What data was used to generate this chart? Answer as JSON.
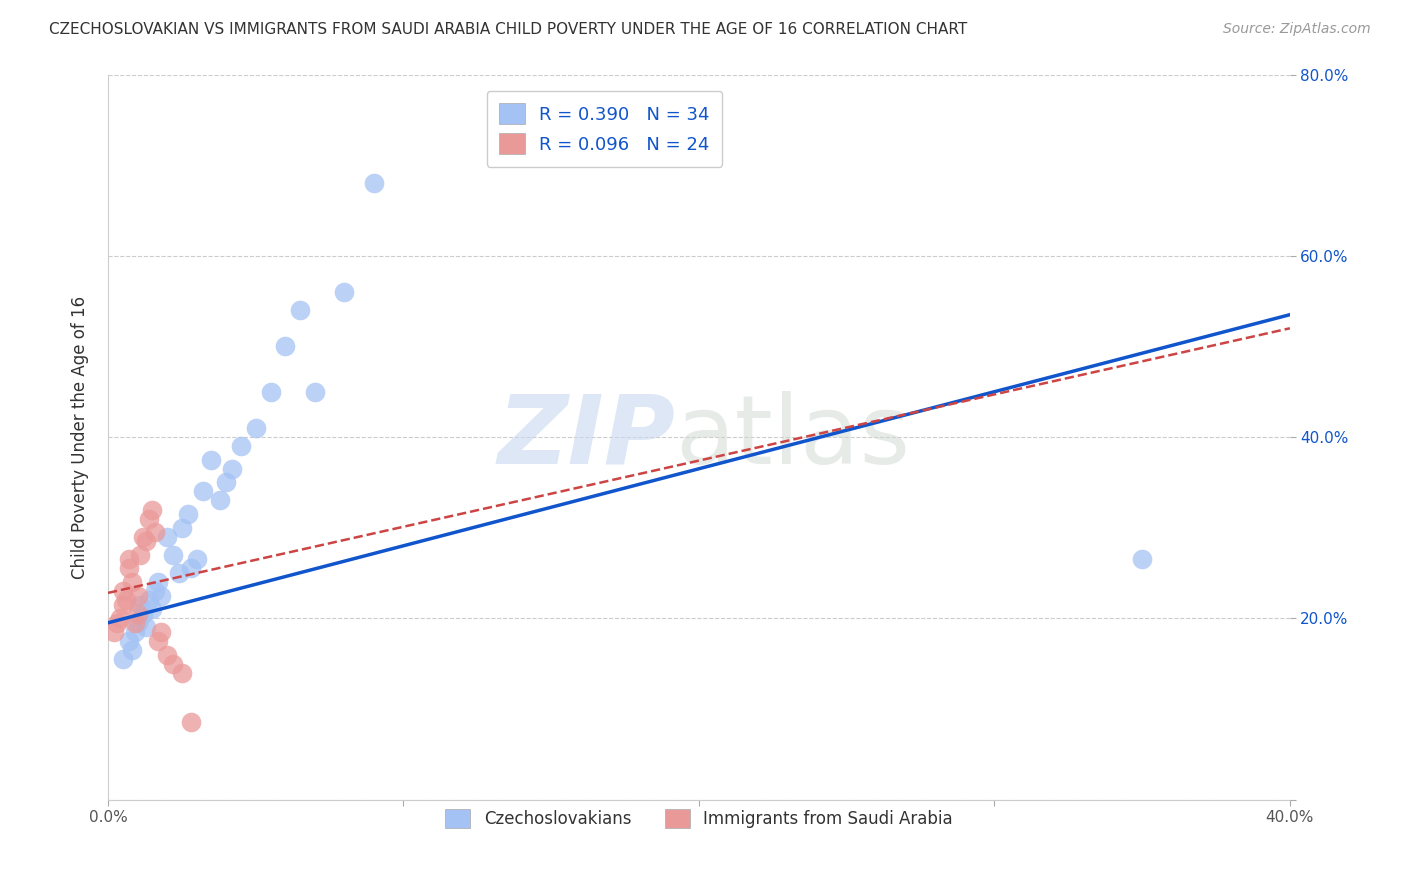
{
  "title": "CZECHOSLOVAKIAN VS IMMIGRANTS FROM SAUDI ARABIA CHILD POVERTY UNDER THE AGE OF 16 CORRELATION CHART",
  "source": "Source: ZipAtlas.com",
  "ylabel": "Child Poverty Under the Age of 16",
  "xlim": [
    0.0,
    0.4
  ],
  "ylim": [
    0.0,
    0.8
  ],
  "xticks": [
    0.0,
    0.1,
    0.2,
    0.3,
    0.4
  ],
  "yticks": [
    0.0,
    0.2,
    0.4,
    0.6,
    0.8
  ],
  "ytick_labels_right": [
    "",
    "20.0%",
    "40.0%",
    "60.0%",
    "80.0%"
  ],
  "xtick_labels": [
    "0.0%",
    "",
    "",
    "",
    "40.0%"
  ],
  "blue_R": 0.39,
  "blue_N": 34,
  "pink_R": 0.096,
  "pink_N": 24,
  "blue_color": "#a4c2f4",
  "pink_color": "#ea9999",
  "blue_line_color": "#1155cc",
  "pink_line_color": "#cc4444",
  "blue_scatter_x": [
    0.005,
    0.007,
    0.008,
    0.009,
    0.01,
    0.011,
    0.012,
    0.013,
    0.014,
    0.015,
    0.016,
    0.017,
    0.018,
    0.02,
    0.022,
    0.024,
    0.025,
    0.027,
    0.028,
    0.03,
    0.032,
    0.035,
    0.038,
    0.04,
    0.042,
    0.045,
    0.05,
    0.055,
    0.06,
    0.065,
    0.07,
    0.08,
    0.09,
    0.35
  ],
  "blue_scatter_y": [
    0.155,
    0.175,
    0.165,
    0.185,
    0.195,
    0.215,
    0.205,
    0.19,
    0.22,
    0.21,
    0.23,
    0.24,
    0.225,
    0.29,
    0.27,
    0.25,
    0.3,
    0.315,
    0.255,
    0.265,
    0.34,
    0.375,
    0.33,
    0.35,
    0.365,
    0.39,
    0.41,
    0.45,
    0.5,
    0.54,
    0.45,
    0.56,
    0.68,
    0.265
  ],
  "pink_scatter_x": [
    0.002,
    0.003,
    0.004,
    0.005,
    0.005,
    0.006,
    0.007,
    0.007,
    0.008,
    0.009,
    0.01,
    0.01,
    0.011,
    0.012,
    0.013,
    0.014,
    0.015,
    0.016,
    0.017,
    0.018,
    0.02,
    0.022,
    0.025,
    0.028
  ],
  "pink_scatter_y": [
    0.185,
    0.195,
    0.2,
    0.215,
    0.23,
    0.22,
    0.255,
    0.265,
    0.24,
    0.195,
    0.205,
    0.225,
    0.27,
    0.29,
    0.285,
    0.31,
    0.32,
    0.295,
    0.175,
    0.185,
    0.16,
    0.15,
    0.14,
    0.085
  ],
  "blue_trendline_x": [
    0.0,
    0.4
  ],
  "blue_trendline_y": [
    0.195,
    0.535
  ],
  "pink_trendline_x": [
    0.0,
    0.4
  ],
  "pink_trendline_y": [
    0.228,
    0.52
  ]
}
